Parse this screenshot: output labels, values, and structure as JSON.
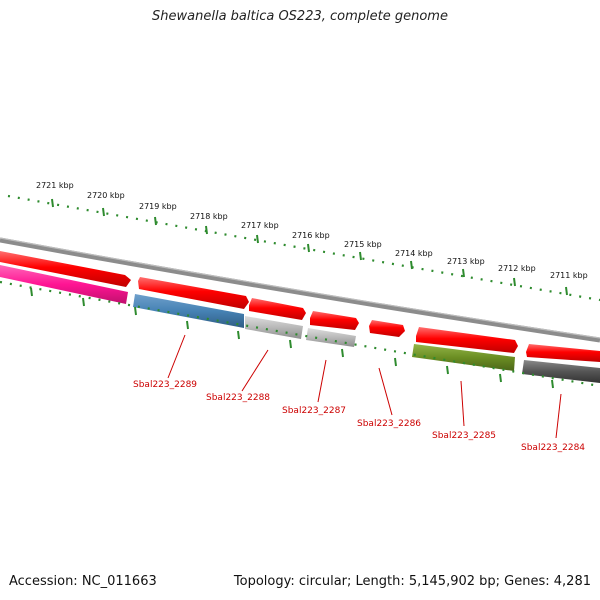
{
  "header": {
    "title": "Shewanella baltica OS223, complete genome"
  },
  "footer": {
    "accession": "Accession: NC_011663",
    "summary": "Topology: circular; Length: 5,145,902 bp; Genes: 4,281"
  },
  "scale": {
    "tick_labels": [
      "2721 kbp",
      "2720 kbp",
      "2719 kbp",
      "2718 kbp",
      "2717 kbp",
      "2716 kbp",
      "2715 kbp",
      "2714 kbp",
      "2713 kbp",
      "2712 kbp",
      "2711 kbp"
    ]
  },
  "genes": {
    "labels": [
      "Sbal223_2289",
      "Sbal223_2288",
      "Sbal223_2287",
      "Sbal223_2286",
      "Sbal223_2285",
      "Sbal223_2284"
    ]
  },
  "colors": {
    "cds_red": "#ff0000",
    "ruler_green": "#2e8b2e",
    "backbone_gray": "#8c8c8c",
    "label_red": "#cc0000",
    "magenta": "#ff1493",
    "steel_blue": "#4682b4",
    "light_gray": "#b8b8b8",
    "olive": "#6b8e23",
    "dark_gray": "#555555"
  }
}
